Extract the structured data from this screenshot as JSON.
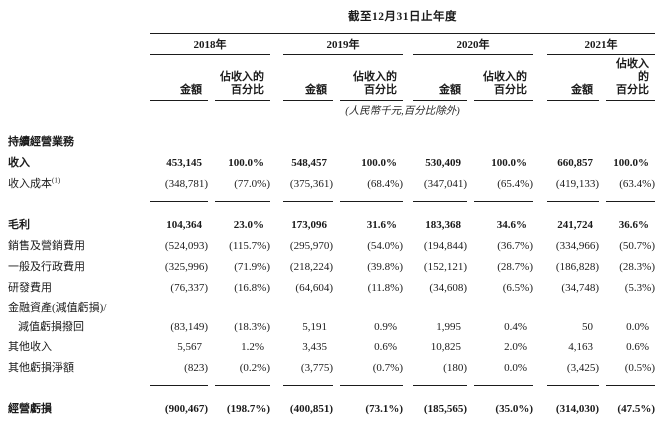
{
  "table": {
    "title": "截至12月31日止年度",
    "note": "(人民幣千元,百分比除外)",
    "years": [
      "2018年",
      "2019年",
      "2020年",
      "2021年"
    ],
    "subheaders": {
      "amount": "金額",
      "pct_line1": "佔收入的",
      "pct_line2": "百分比"
    },
    "rows": [
      {
        "label": "持續經營業務",
        "bold": true,
        "cells": [
          "",
          "",
          "",
          "",
          "",
          "",
          "",
          ""
        ]
      },
      {
        "label": "收入",
        "bold": true,
        "cells": [
          "453,145",
          "100.0%",
          "548,457",
          "100.0%",
          "530,409",
          "100.0%",
          "660,857",
          "100.0%"
        ]
      },
      {
        "label": "收入成本",
        "sup": "(1)",
        "rule_below": true,
        "cells": [
          "(348,781)",
          "(77.0%)",
          "(375,361)",
          "(68.4%)",
          "(347,041)",
          "(65.4%)",
          "(419,133)",
          "(63.4%)"
        ]
      },
      {
        "label": "毛利",
        "bold": true,
        "cells": [
          "104,364",
          "23.0%",
          "173,096",
          "31.6%",
          "183,368",
          "34.6%",
          "241,724",
          "36.6%"
        ]
      },
      {
        "label": "銷售及營銷費用",
        "cells": [
          "(524,093)",
          "(115.7%)",
          "(295,970)",
          "(54.0%)",
          "(194,844)",
          "(36.7%)",
          "(334,966)",
          "(50.7%)"
        ]
      },
      {
        "label": "一般及行政費用",
        "cells": [
          "(325,996)",
          "(71.9%)",
          "(218,224)",
          "(39.8%)",
          "(152,121)",
          "(28.7%)",
          "(186,828)",
          "(28.3%)"
        ]
      },
      {
        "label": "研發費用",
        "cells": [
          "(76,337)",
          "(16.8%)",
          "(64,604)",
          "(11.8%)",
          "(34,608)",
          "(6.5%)",
          "(34,748)",
          "(5.3%)"
        ]
      },
      {
        "label": "金融資產(減值虧損)/",
        "compact": true,
        "cells": [
          "",
          "",
          "",
          "",
          "",
          "",
          "",
          ""
        ]
      },
      {
        "label": "減值虧損撥回",
        "indent": true,
        "compact": true,
        "cells": [
          "(83,149)",
          "(18.3%)",
          "5,191",
          "0.9%",
          "1,995",
          "0.4%",
          "50",
          "0.0%"
        ]
      },
      {
        "label": "其他收入",
        "cells": [
          "5,567",
          "1.2%",
          "3,435",
          "0.6%",
          "10,825",
          "2.0%",
          "4,163",
          "0.6%"
        ]
      },
      {
        "label": "其他虧損淨額",
        "rule_below": true,
        "cells": [
          "(823)",
          "(0.2%)",
          "(3,775)",
          "(0.7%)",
          "(180)",
          "0.0%",
          "(3,425)",
          "(0.5%)"
        ]
      },
      {
        "label": "經營虧損",
        "bold": true,
        "cells": [
          "(900,467)",
          "(198.7%)",
          "(400,851)",
          "(73.1%)",
          "(185,565)",
          "(35.0%)",
          "(314,030)",
          "(47.5%)"
        ]
      }
    ]
  }
}
